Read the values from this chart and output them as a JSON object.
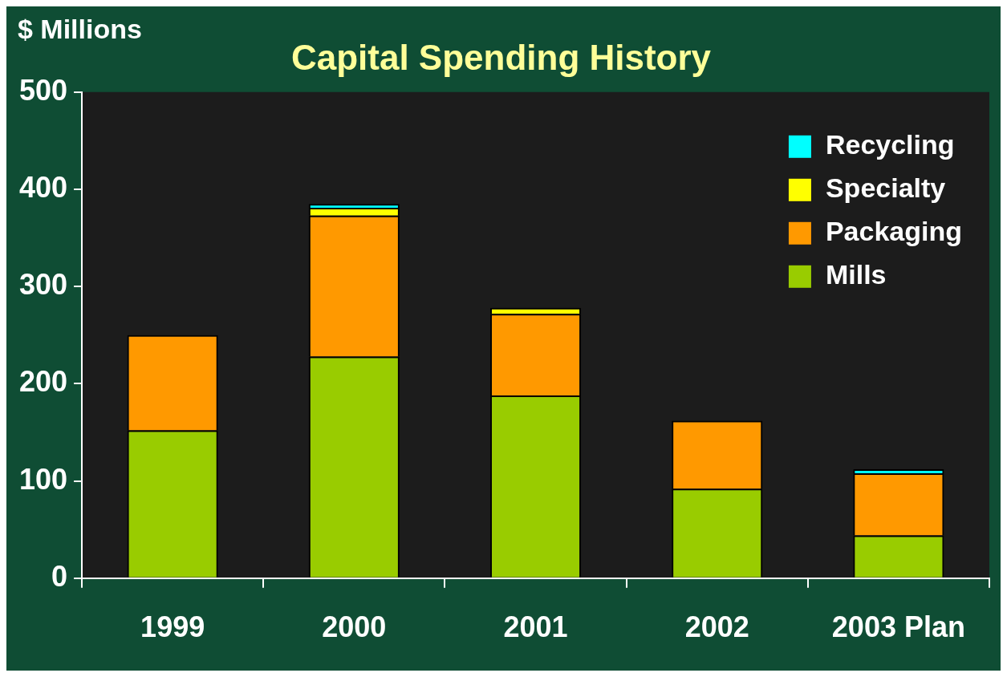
{
  "chart_data": {
    "type": "bar",
    "title": "Capital Spending History",
    "ylabel": "$ Millions",
    "categories": [
      "1999",
      "2000",
      "2001",
      "2002",
      "2003 Plan"
    ],
    "stacked": true,
    "legend": "top right",
    "ylim": [
      0,
      500
    ],
    "yticks": [
      0,
      100,
      200,
      300,
      400,
      500
    ],
    "series": [
      {
        "name": "Mills",
        "color": "#99cc00",
        "values": [
          152,
          228,
          188,
          92,
          44
        ]
      },
      {
        "name": "Packaging",
        "color": "#ff9900",
        "values": [
          98,
          145,
          84,
          70,
          64
        ]
      },
      {
        "name": "Specialty",
        "color": "#ffff00",
        "values": [
          null,
          8,
          6,
          null,
          null
        ]
      },
      {
        "name": "Recycling",
        "color": "#00ffff",
        "values": [
          null,
          4,
          null,
          null,
          4
        ]
      }
    ]
  }
}
